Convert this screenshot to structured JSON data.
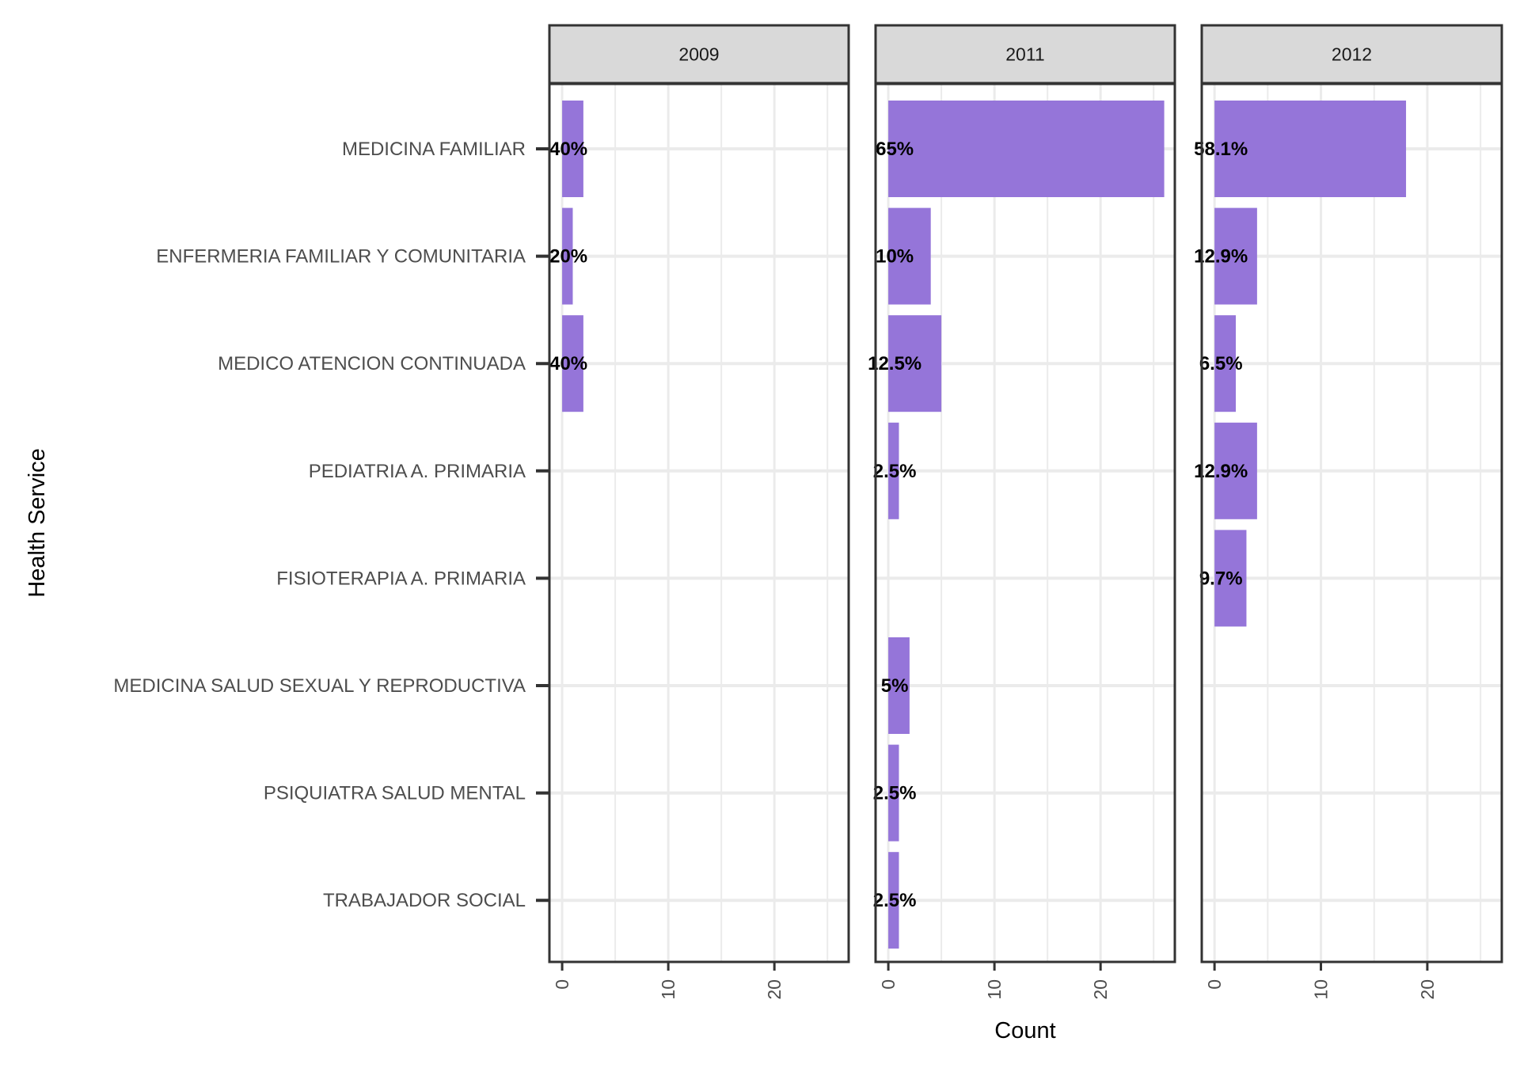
{
  "chart_data": {
    "type": "bar",
    "orientation": "horizontal",
    "facet_by": "year",
    "xlabel": "Count",
    "ylabel": "Health Service",
    "xlim": [
      -1.2,
      27
    ],
    "x_ticks": [
      0,
      10,
      20
    ],
    "grid": true,
    "bar_color": "#9575d9",
    "categories": [
      "MEDICINA FAMILIAR",
      "ENFERMERIA FAMILIAR Y COMUNITARIA",
      "MEDICO ATENCION CONTINUADA",
      "PEDIATRIA A. PRIMARIA",
      "FISIOTERAPIA A. PRIMARIA",
      "MEDICINA SALUD SEXUAL Y REPRODUCTIVA",
      "PSIQUIATRA SALUD MENTAL",
      "TRABAJADOR SOCIAL"
    ],
    "facets": [
      {
        "name": "2009",
        "values": [
          2,
          1,
          2,
          null,
          null,
          null,
          null,
          null
        ],
        "labels": [
          "40%",
          "20%",
          "40%",
          null,
          null,
          null,
          null,
          null
        ]
      },
      {
        "name": "2011",
        "values": [
          26,
          4,
          5,
          1,
          null,
          2,
          1,
          1
        ],
        "labels": [
          "65%",
          "10%",
          "12.5%",
          "2.5%",
          null,
          "5%",
          "2.5%",
          "2.5%"
        ]
      },
      {
        "name": "2012",
        "values": [
          18,
          4,
          2,
          4,
          3,
          null,
          null,
          null
        ],
        "labels": [
          "58.1%",
          "12.9%",
          "6.5%",
          "12.9%",
          "9.7%",
          null,
          null,
          null
        ]
      }
    ]
  }
}
